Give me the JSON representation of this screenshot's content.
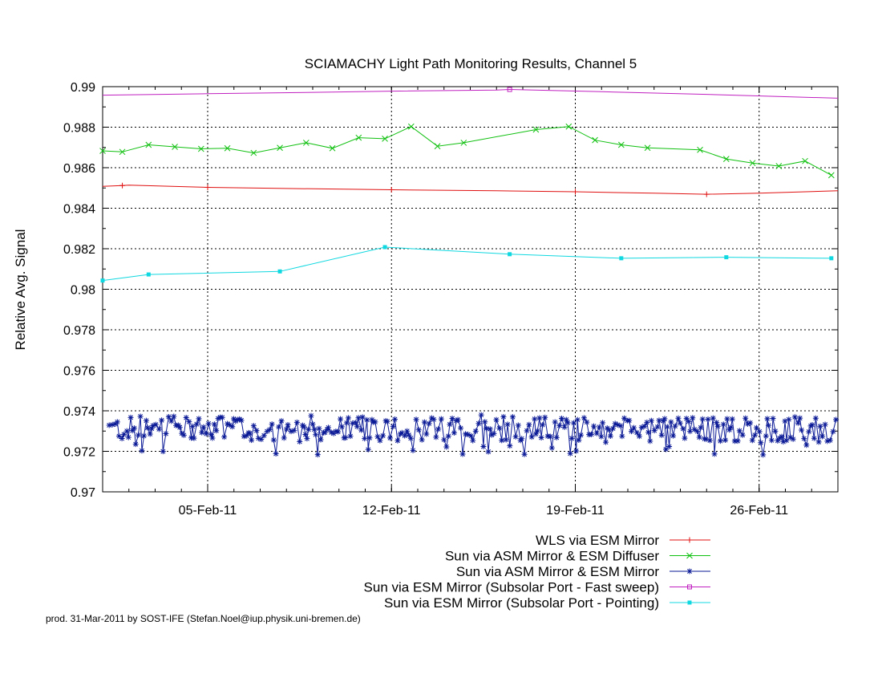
{
  "chart_data": {
    "type": "line",
    "title": "SCIAMACHY Light Path Monitoring Results, Channel 5",
    "ylabel": "Relative Avg. Signal",
    "xlabel": "",
    "x_unit": "date (2011-02)",
    "xlim": [
      "2011-02-01",
      "2011-02-29"
    ],
    "ylim": [
      0.97,
      0.99
    ],
    "grid": true,
    "legend_position": "below-plot-right",
    "x_ticks": [
      {
        "x": "2011-02-05",
        "label": "05-Feb-11"
      },
      {
        "x": "2011-02-12",
        "label": "12-Feb-11"
      },
      {
        "x": "2011-02-19",
        "label": "19-Feb-11"
      },
      {
        "x": "2011-02-26",
        "label": "26-Feb-11"
      }
    ],
    "y_ticks": [
      {
        "v": 0.97,
        "label": "0.97"
      },
      {
        "v": 0.972,
        "label": "0.972"
      },
      {
        "v": 0.974,
        "label": "0.974"
      },
      {
        "v": 0.976,
        "label": "0.976"
      },
      {
        "v": 0.978,
        "label": "0.978"
      },
      {
        "v": 0.98,
        "label": "0.98"
      },
      {
        "v": 0.982,
        "label": "0.982"
      },
      {
        "v": 0.984,
        "label": "0.984"
      },
      {
        "v": 0.986,
        "label": "0.986"
      },
      {
        "v": 0.988,
        "label": "0.988"
      },
      {
        "v": 0.99,
        "label": "0.99"
      }
    ],
    "series": [
      {
        "name": "WLS via ESM Mirror",
        "color": "#e01010",
        "marker": "plus",
        "points": [
          {
            "x": "2011-02-01",
            "y": 0.98508
          },
          {
            "x": "2011-02-01 18:00",
            "y": 0.98512
          },
          {
            "x": "2011-02-02",
            "y": 0.98514
          },
          {
            "x": "2011-02-05",
            "y": 0.98503
          },
          {
            "x": "2011-02-09",
            "y": 0.98496
          },
          {
            "x": "2011-02-12",
            "y": 0.98491
          },
          {
            "x": "2011-02-16",
            "y": 0.98486
          },
          {
            "x": "2011-02-19",
            "y": 0.98481
          },
          {
            "x": "2011-02-22",
            "y": 0.98474
          },
          {
            "x": "2011-02-24",
            "y": 0.98469
          },
          {
            "x": "2011-02-26",
            "y": 0.98474
          },
          {
            "x": "2011-02-29",
            "y": 0.98486
          }
        ]
      },
      {
        "name": "Sun via ASM Mirror & ESM Diffuser",
        "color": "#10c010",
        "marker": "x",
        "points": [
          {
            "x": "2011-02-01",
            "y": 0.98683
          },
          {
            "x": "2011-02-01 18:00",
            "y": 0.98678
          },
          {
            "x": "2011-02-02 18:00",
            "y": 0.98713
          },
          {
            "x": "2011-02-03 18:00",
            "y": 0.98703
          },
          {
            "x": "2011-02-04 18:00",
            "y": 0.98693
          },
          {
            "x": "2011-02-05 18:00",
            "y": 0.98696
          },
          {
            "x": "2011-02-06 18:00",
            "y": 0.98673
          },
          {
            "x": "2011-02-07 18:00",
            "y": 0.98698
          },
          {
            "x": "2011-02-08 18:00",
            "y": 0.98723
          },
          {
            "x": "2011-02-09 18:00",
            "y": 0.98696
          },
          {
            "x": "2011-02-10 18:00",
            "y": 0.98748
          },
          {
            "x": "2011-02-11 18:00",
            "y": 0.98743
          },
          {
            "x": "2011-02-12 18:00",
            "y": 0.98803
          },
          {
            "x": "2011-02-13 18:00",
            "y": 0.98706
          },
          {
            "x": "2011-02-14 18:00",
            "y": 0.98723
          },
          {
            "x": "2011-02-17 12:00",
            "y": 0.98788
          },
          {
            "x": "2011-02-18 18:00",
            "y": 0.98803
          },
          {
            "x": "2011-02-19 18:00",
            "y": 0.98736
          },
          {
            "x": "2011-02-20 18:00",
            "y": 0.98713
          },
          {
            "x": "2011-02-21 18:00",
            "y": 0.98698
          },
          {
            "x": "2011-02-23 18:00",
            "y": 0.98688
          },
          {
            "x": "2011-02-24 18:00",
            "y": 0.98643
          },
          {
            "x": "2011-02-25 18:00",
            "y": 0.98623
          },
          {
            "x": "2011-02-26 18:00",
            "y": 0.98608
          },
          {
            "x": "2011-02-27 18:00",
            "y": 0.98633
          },
          {
            "x": "2011-02-28 18:00",
            "y": 0.98563
          }
        ]
      },
      {
        "name": "Sun via ASM Mirror & ESM Mirror",
        "color": "#0b1a96",
        "marker": "star",
        "points": []
      },
      {
        "name": "Sun via ESM Mirror (Subsolar Port - Fast sweep)",
        "color": "#c020c0",
        "marker": "square-open",
        "points": [
          {
            "x": "2011-02-01",
            "y": 0.98958
          },
          {
            "x": "2011-02-05",
            "y": 0.98965
          },
          {
            "x": "2011-02-09",
            "y": 0.98972
          },
          {
            "x": "2011-02-12",
            "y": 0.98978
          },
          {
            "x": "2011-02-16",
            "y": 0.98983
          },
          {
            "x": "2011-02-16 12:00",
            "y": 0.98986
          },
          {
            "x": "2011-02-20",
            "y": 0.98975
          },
          {
            "x": "2011-02-24",
            "y": 0.98962
          },
          {
            "x": "2011-02-29",
            "y": 0.98943
          }
        ]
      },
      {
        "name": "Sun via ESM Mirror (Subsolar Port - Pointing)",
        "color": "#10d8e0",
        "marker": "square-filled",
        "points": [
          {
            "x": "2011-02-01",
            "y": 0.98043
          },
          {
            "x": "2011-02-02 18:00",
            "y": 0.98073
          },
          {
            "x": "2011-02-07 18:00",
            "y": 0.98088
          },
          {
            "x": "2011-02-11 18:00",
            "y": 0.98208
          },
          {
            "x": "2011-02-16 12:00",
            "y": 0.98173
          },
          {
            "x": "2011-02-20 18:00",
            "y": 0.98153
          },
          {
            "x": "2011-02-24 18:00",
            "y": 0.98158
          },
          {
            "x": "2011-02-28 18:00",
            "y": 0.98153
          }
        ]
      }
    ],
    "dense_series_note_values": {
      "Sun via ASM Mirror & ESM Mirror_y_mean": 0.9731,
      "Sun via ASM Mirror & ESM Mirror_y_range": [
        0.9718,
        0.9738
      ]
    }
  },
  "footer": "prod. 31-Mar-2011 by SOST-IFE (Stefan.Noel@iup.physik.uni-bremen.de)"
}
